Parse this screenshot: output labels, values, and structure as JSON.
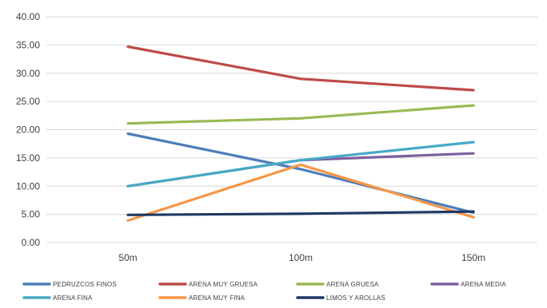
{
  "chart_data": {
    "type": "line",
    "categories": [
      "50m",
      "100m",
      "150m"
    ],
    "ylim": [
      0,
      40
    ],
    "yticks": [
      "0.00",
      "5.00",
      "10.00",
      "15.00",
      "20.00",
      "25.00",
      "30.00",
      "35.00",
      "40.00"
    ],
    "grid": true,
    "legend_position": "bottom",
    "series": [
      {
        "name": "PEDRUZCOS FINOS",
        "color": "#4a7ebb",
        "values": [
          19.3,
          13.0,
          5.3
        ]
      },
      {
        "name": "ARENA MUY GRUESA",
        "color": "#be4b48",
        "values": [
          34.7,
          29.0,
          27.0
        ]
      },
      {
        "name": "ARENA GRUESA",
        "color": "#98b954",
        "values": [
          21.1,
          22.0,
          24.3
        ]
      },
      {
        "name": "ARENA MEDIA",
        "color": "#7d60a0",
        "values": [
          10.0,
          14.6,
          15.8
        ]
      },
      {
        "name": "ARENA FINA",
        "color": "#46aac5",
        "values": [
          10.0,
          14.6,
          17.8
        ]
      },
      {
        "name": "ARENA MUY FINA",
        "color": "#f79646",
        "values": [
          3.9,
          13.8,
          4.5
        ]
      },
      {
        "name": "LIMOS Y AROLLAS",
        "color": "#1f3864",
        "values": [
          4.9,
          5.1,
          5.5
        ]
      }
    ]
  }
}
